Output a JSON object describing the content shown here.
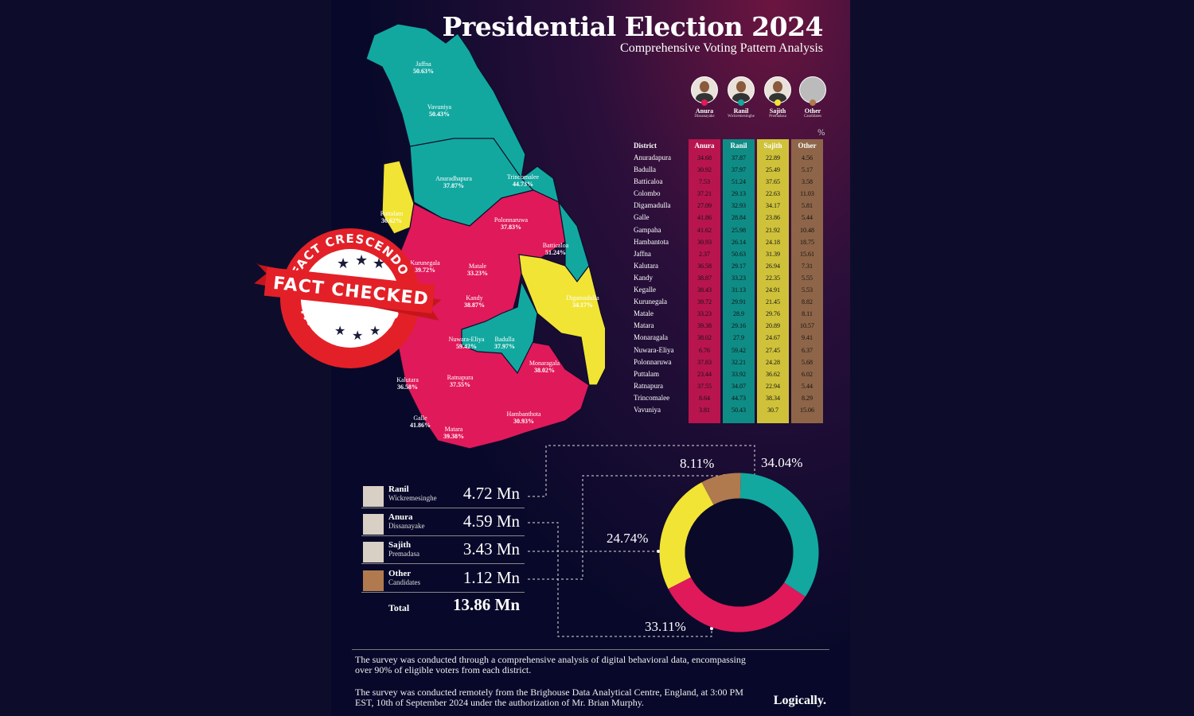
{
  "title": "Presidential Election 2024",
  "subtitle": "Comprehensive Voting Pattern Analysis",
  "candidates": [
    {
      "first": "Anura",
      "last": "Dissanayake",
      "color": "#e0195a"
    },
    {
      "first": "Ranil",
      "last": "Wickremesinghe",
      "color": "#12a8a0"
    },
    {
      "first": "Sajith",
      "last": "Premadasa",
      "color": "#f2e434"
    },
    {
      "first": "Other",
      "last": "Candidates",
      "color": "#b07a4e"
    }
  ],
  "table": {
    "pct_sign": "%",
    "headers": {
      "district": "District",
      "anura": "Anura",
      "ranil": "Ranil",
      "sajith": "Sajith",
      "other": "Other"
    }
  },
  "chart_data": [
    {
      "type": "table",
      "columns": [
        "District",
        "Anura",
        "Ranil",
        "Sajith",
        "Other"
      ],
      "rows": [
        [
          "Anuradapura",
          "34.68",
          "37.87",
          "22.89",
          "4.56"
        ],
        [
          "Badulla",
          "30.92",
          "37.97",
          "25.49",
          "5.17"
        ],
        [
          "Batticaloa",
          "7.53",
          "51.24",
          "37.65",
          "3.58"
        ],
        [
          "Colombo",
          "37.21",
          "29.13",
          "22.63",
          "11.03"
        ],
        [
          "Digamadulla",
          "27.09",
          "32.93",
          "34.17",
          "5.81"
        ],
        [
          "Galle",
          "41.86",
          "28.84",
          "23.86",
          "5.44"
        ],
        [
          "Gampaha",
          "41.62",
          "25.98",
          "21.92",
          "10.48"
        ],
        [
          "Hambantota",
          "30.93",
          "26.14",
          "24.18",
          "18.75"
        ],
        [
          "Jaffna",
          "2.37",
          "50.63",
          "31.39",
          "15.61"
        ],
        [
          "Kalutara",
          "36.58",
          "29.17",
          "26.94",
          "7.31"
        ],
        [
          "Kandy",
          "38.87",
          "33.23",
          "22.35",
          "5.55"
        ],
        [
          "Kegalle",
          "38.43",
          "31.13",
          "24.91",
          "5.53"
        ],
        [
          "Kurunegala",
          "39.72",
          "29.91",
          "21.45",
          "8.82"
        ],
        [
          "Matale",
          "33.23",
          "28.9",
          "29.76",
          "8.11"
        ],
        [
          "Matara",
          "39.38",
          "29.16",
          "20.89",
          "10.57"
        ],
        [
          "Monaragala",
          "38.02",
          "27.9",
          "24.67",
          "9.41"
        ],
        [
          "Nuwara-Eliya",
          "6.76",
          "59.42",
          "27.45",
          "6.37"
        ],
        [
          "Polonnaruwa",
          "37.83",
          "32.21",
          "24.28",
          "5.68"
        ],
        [
          "Puttalam",
          "23.44",
          "33.92",
          "36.62",
          "6.02"
        ],
        [
          "Ratnapura",
          "37.55",
          "34.07",
          "22.94",
          "5.44"
        ],
        [
          "Trincomalee",
          "8.64",
          "44.73",
          "38.34",
          "8.29"
        ],
        [
          "Vavuniya",
          "3.81",
          "50.43",
          "30.7",
          "15.06"
        ]
      ]
    },
    {
      "type": "pie",
      "slices": [
        {
          "label": "34.04%",
          "value": 34.04,
          "color": "#12a8a0"
        },
        {
          "label": "33.11%",
          "value": 33.11,
          "color": "#e0195a"
        },
        {
          "label": "24.74%",
          "value": 24.74,
          "color": "#f2e434"
        },
        {
          "label": "8.11%",
          "value": 8.11,
          "color": "#b07a4e"
        }
      ]
    }
  ],
  "map_labels": [
    {
      "name": "Jaffna",
      "pct": "50.63%"
    },
    {
      "name": "Vavuniya",
      "pct": "50.43%"
    },
    {
      "name": "Anuradhapura",
      "pct": "37.87%"
    },
    {
      "name": "Trincomalee",
      "pct": "44.73%"
    },
    {
      "name": "Puttalam",
      "pct": "36.62%"
    },
    {
      "name": "Polonnaruwa",
      "pct": "37.83%"
    },
    {
      "name": "Batticaloa",
      "pct": "51.24%"
    },
    {
      "name": "Kurunegala",
      "pct": "39.72%"
    },
    {
      "name": "Matale",
      "pct": "33.23%"
    },
    {
      "name": "Kandy",
      "pct": "38.87%"
    },
    {
      "name": "Digamadulla",
      "pct": "34.17%"
    },
    {
      "name": "Nuwara-Eliya",
      "pct": "59.42%"
    },
    {
      "name": "Badulla",
      "pct": "37.97%"
    },
    {
      "name": "Monaragala",
      "pct": "38.02%"
    },
    {
      "name": "Kalutara",
      "pct": "36.58%"
    },
    {
      "name": "Ratnapura",
      "pct": "37.55%"
    },
    {
      "name": "Galle",
      "pct": "41.86%"
    },
    {
      "name": "Matara",
      "pct": "39.38%"
    },
    {
      "name": "Hambanthota",
      "pct": "30.93%"
    }
  ],
  "votes": [
    {
      "first": "Ranil",
      "last": "Wickremesinghe",
      "value": "4.72 Mn"
    },
    {
      "first": "Anura",
      "last": "Dissanayake",
      "value": "4.59 Mn"
    },
    {
      "first": "Sajith",
      "last": "Premadasa",
      "value": "3.43 Mn"
    },
    {
      "first": "Other",
      "last": "Candidates",
      "value": "1.12 Mn"
    }
  ],
  "total": {
    "label": "Total",
    "value": "13.86 Mn"
  },
  "footnote1": "The survey was conducted through a comprehensive analysis of digital behavioral data, encompassing over 90% of eligible voters from each district.",
  "footnote2": "The survey was conducted remotely from the Brighouse Data Analytical Centre, England, at 3:00 PM EST, 10th of September 2024 under the authorization of Mr. Brian Murphy.",
  "logo": "Logically.",
  "stamp": {
    "top": "FACT CRESCENDO",
    "middle": "FACT CHECKED",
    "bottom": "FACT CRESCENDO"
  }
}
